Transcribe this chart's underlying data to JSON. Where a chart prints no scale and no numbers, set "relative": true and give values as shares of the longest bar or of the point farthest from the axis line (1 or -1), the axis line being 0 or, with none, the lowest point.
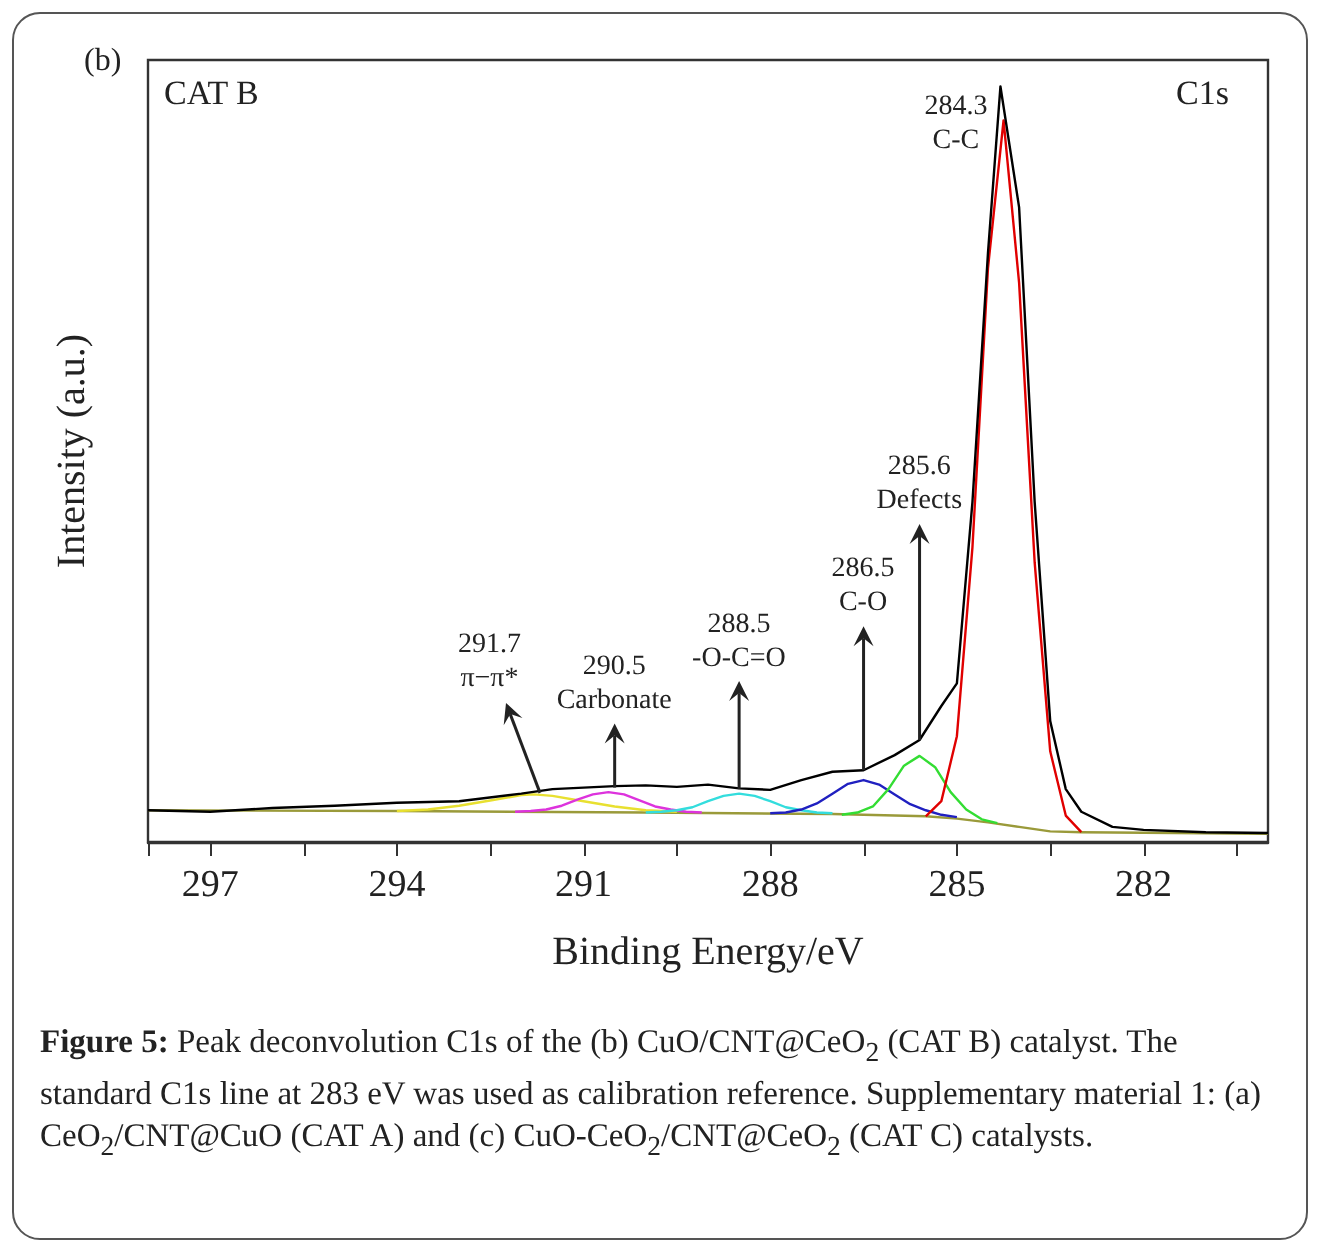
{
  "chart_data": {
    "type": "line",
    "relative": true,
    "xlabel": "Binding Energy/eV",
    "ylabel": "Intensity (a.u.)",
    "xlim": [
      298,
      280
    ],
    "xticks": [
      {
        "value": 298,
        "label": null
      },
      297,
      {
        "value": 295.5,
        "label": null
      },
      294,
      {
        "value": 292.5,
        "label": null
      },
      291,
      {
        "value": 289.5,
        "label": null
      },
      288,
      {
        "value": 286.5,
        "label": null
      },
      285,
      {
        "value": 283.5,
        "label": null
      },
      282,
      {
        "value": 280.5,
        "label": null
      }
    ],
    "marker": "none",
    "line_style": "solid",
    "series": [
      {
        "color": "#9a9a3a",
        "x": [
          298,
          294,
          290,
          287,
          285.5,
          285,
          284.5,
          284,
          283.5,
          283,
          280
        ],
        "values": [
          0.042,
          0.041,
          0.039,
          0.037,
          0.034,
          0.031,
          0.026,
          0.02,
          0.014,
          0.013,
          0.011
        ]
      },
      {
        "color": "#e8e030",
        "x": [
          294,
          293.5,
          293,
          292.5,
          292,
          291.8,
          291.5,
          291,
          290.5,
          290,
          289.5
        ],
        "values": [
          0.041,
          0.043,
          0.048,
          0.055,
          0.062,
          0.063,
          0.061,
          0.054,
          0.047,
          0.042,
          0.04
        ]
      },
      {
        "color": "#dd33dd",
        "x": [
          292.1,
          291.85,
          291.6,
          291.35,
          291.1,
          290.85,
          290.6,
          290.35,
          290.1,
          289.85,
          289.6,
          289.35,
          289.1
        ],
        "values": [
          0.04,
          0.041,
          0.043,
          0.048,
          0.056,
          0.063,
          0.066,
          0.063,
          0.055,
          0.047,
          0.043,
          0.04,
          0.039
        ]
      },
      {
        "color": "#33dddd",
        "x": [
          290,
          289.75,
          289.5,
          289.25,
          289,
          288.75,
          288.5,
          288.25,
          288,
          287.75,
          287.5,
          287.25,
          287
        ],
        "values": [
          0.039,
          0.04,
          0.042,
          0.046,
          0.054,
          0.061,
          0.064,
          0.061,
          0.054,
          0.046,
          0.042,
          0.039,
          0.038
        ]
      },
      {
        "color": "#2020c0",
        "x": [
          288,
          287.75,
          287.5,
          287.25,
          287,
          286.75,
          286.5,
          286.25,
          286,
          285.75,
          285.5,
          285.25,
          285
        ],
        "values": [
          0.038,
          0.039,
          0.043,
          0.051,
          0.064,
          0.077,
          0.082,
          0.076,
          0.063,
          0.05,
          0.042,
          0.036,
          0.033
        ]
      },
      {
        "color": "#33dd33",
        "x": [
          286.85,
          286.6,
          286.35,
          286.1,
          285.85,
          285.6,
          285.35,
          285.1,
          284.85,
          284.6,
          284.35
        ],
        "values": [
          0.036,
          0.039,
          0.047,
          0.07,
          0.101,
          0.114,
          0.099,
          0.066,
          0.043,
          0.03,
          0.025
        ]
      },
      {
        "color": "#e00000",
        "x": [
          285.5,
          285.25,
          285,
          284.75,
          284.5,
          284.25,
          284,
          283.75,
          283.5,
          283.25,
          283
        ],
        "values": [
          0.034,
          0.054,
          0.14,
          0.39,
          0.76,
          0.955,
          0.74,
          0.37,
          0.12,
          0.035,
          0.013
        ]
      },
      {
        "color": "#000000",
        "x": [
          298,
          297,
          296,
          295,
          294,
          293,
          292,
          291.5,
          291,
          290.5,
          290,
          289.5,
          289,
          288.5,
          288,
          287.5,
          287,
          286.5,
          286,
          285.6,
          285.25,
          285,
          284.75,
          284.5,
          284.3,
          284,
          283.75,
          283.5,
          283.25,
          283,
          282.5,
          282,
          281,
          280
        ],
        "values": [
          0.042,
          0.04,
          0.045,
          0.048,
          0.052,
          0.054,
          0.064,
          0.07,
          0.072,
          0.074,
          0.075,
          0.073,
          0.076,
          0.071,
          0.069,
          0.082,
          0.093,
          0.095,
          0.115,
          0.135,
          0.18,
          0.21,
          0.45,
          0.78,
          1,
          0.84,
          0.45,
          0.16,
          0.07,
          0.04,
          0.02,
          0.016,
          0.013,
          0.012
        ]
      }
    ],
    "annotations": [
      {
        "text": "291.7\nπ−π*",
        "x": 291.7,
        "y": 0.065
      },
      {
        "text": "290.5\nCarbonate",
        "x": 290.5,
        "y": 0.072
      },
      {
        "text": "288.5\n-O-C=O",
        "x": 288.5,
        "y": 0.07
      },
      {
        "text": "286.5\nC-O",
        "x": 286.5,
        "y": 0.095
      },
      {
        "text": "285.6\nDefects",
        "x": 285.6,
        "y": 0.135
      },
      {
        "text": "284.3\nC-C",
        "x": 284.3,
        "y": 1
      },
      "(b)",
      "CAT B",
      "C1s",
      "Figure 5: Peak deconvolution C1s of the (b) CuO/CNT@CeO$_{2}$ (CAT B) catalyst. The standard C1s line at 283 eV was used as calibration reference. Supplementary material 1: (a) CeO$_{2}$/CNT@CuO (CAT A) and (c) CuO-CeO$_{2}$/CNT@CeO$_{2}$ (CAT C) catalysts."
    ]
  }
}
